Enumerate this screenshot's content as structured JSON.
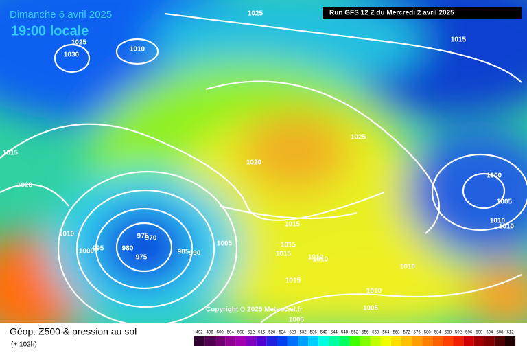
{
  "header": {
    "date": "Dimanche 6 avril 2025",
    "time": "19:00 locale",
    "run": "Run GFS 12 Z du Mercredi 2 avril 2025"
  },
  "copyright": "Copyright © 2025 Meteociel.fr",
  "footer": {
    "title": "Géop. Z500 & pression au sol",
    "lead": "(+ 102h)"
  },
  "isobar_labels": [
    "1025",
    "1025",
    "1010",
    "1030",
    "1015",
    "1015",
    "1020",
    "1020",
    "1025",
    "1000",
    "1005",
    "1010",
    "1010",
    "1015",
    "1010",
    "1000",
    "995",
    "975",
    "970",
    "980",
    "975",
    "985",
    "990",
    "1005",
    "1015",
    "1015",
    "1010",
    "1010",
    "1015",
    "1010",
    "1010",
    "1005",
    "1005"
  ],
  "legend": {
    "labels": [
      492,
      496,
      500,
      504,
      508,
      512,
      516,
      520,
      524,
      528,
      532,
      536,
      540,
      544,
      548,
      552,
      556,
      560,
      564,
      568,
      572,
      576,
      580,
      584,
      588,
      592,
      596,
      600,
      604,
      608,
      612
    ],
    "colors": [
      "#300030",
      "#500050",
      "#700070",
      "#900090",
      "#a000b0",
      "#8000c0",
      "#5000d0",
      "#2020e0",
      "#0040f0",
      "#0070ff",
      "#00a0ff",
      "#00d0ff",
      "#00ffe0",
      "#00ffa0",
      "#00ff60",
      "#40ff00",
      "#80ff00",
      "#c0ff00",
      "#f0ff00",
      "#ffe000",
      "#ffc000",
      "#ffa000",
      "#ff8000",
      "#ff6000",
      "#ff4000",
      "#f02000",
      "#d00000",
      "#a00000",
      "#800000",
      "#500000",
      "#200000"
    ]
  }
}
